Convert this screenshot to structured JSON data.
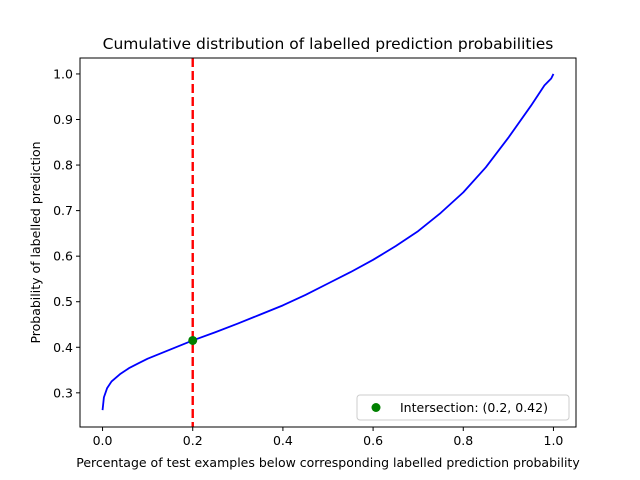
{
  "chart_data": {
    "type": "line",
    "title": "Cumulative distribution of labelled prediction probabilities",
    "xlabel": "Percentage of test examples below corresponding labelled prediction probability",
    "ylabel": "Probability of labelled prediction",
    "xlim": [
      -0.05,
      1.05
    ],
    "ylim": [
      0.225,
      1.035
    ],
    "xticks": [
      0.0,
      0.2,
      0.4,
      0.6,
      0.8,
      1.0
    ],
    "xtick_labels": [
      "0.0",
      "0.2",
      "0.4",
      "0.6",
      "0.8",
      "1.0"
    ],
    "yticks": [
      0.3,
      0.4,
      0.5,
      0.6,
      0.7,
      0.8,
      0.9,
      1.0
    ],
    "ytick_labels": [
      "0.3",
      "0.4",
      "0.5",
      "0.6",
      "0.7",
      "0.8",
      "0.9",
      "1.0"
    ],
    "grid": false,
    "legend_position": "lower-right",
    "series": [
      {
        "color": "#0000ff",
        "x": [
          0.0,
          0.003,
          0.01,
          0.02,
          0.04,
          0.06,
          0.08,
          0.1,
          0.15,
          0.2,
          0.25,
          0.3,
          0.35,
          0.4,
          0.45,
          0.5,
          0.55,
          0.6,
          0.65,
          0.7,
          0.75,
          0.8,
          0.85,
          0.9,
          0.95,
          0.98,
          0.995,
          1.0
        ],
        "y": [
          0.262,
          0.29,
          0.31,
          0.325,
          0.342,
          0.355,
          0.365,
          0.375,
          0.395,
          0.415,
          0.433,
          0.452,
          0.472,
          0.492,
          0.515,
          0.54,
          0.565,
          0.592,
          0.622,
          0.655,
          0.695,
          0.74,
          0.795,
          0.86,
          0.93,
          0.975,
          0.99,
          1.0
        ]
      }
    ],
    "vline": {
      "x": 0.2,
      "color": "#ff0000",
      "style": "dashed"
    },
    "intersection": {
      "x": 0.2,
      "y": 0.415,
      "color": "#008000",
      "label": "Intersection: (0.2, 0.42)"
    }
  }
}
